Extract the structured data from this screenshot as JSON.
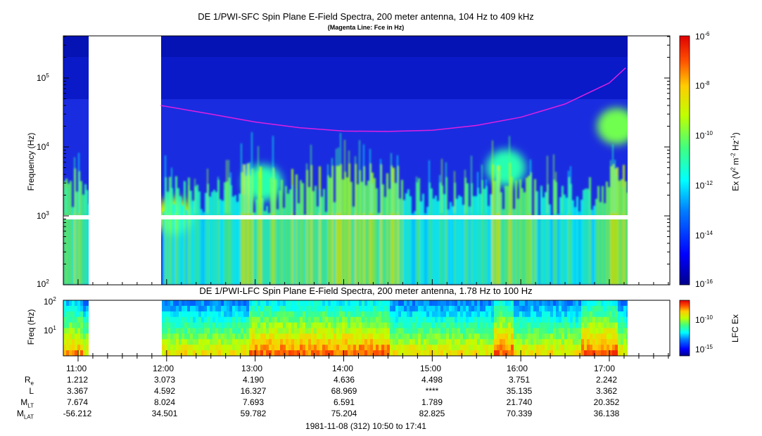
{
  "panel1": {
    "title": "DE 1/PWI-SFC  Spin Plane E-Field Spectra, 200 meter antenna, 104 Hz to 409 kHz",
    "subtitle": "(Magenta Line: Fce in Hz)",
    "ylabel": "Frequency (Hz)",
    "yticks": [
      {
        "base": "10",
        "exp": "5"
      },
      {
        "base": "10",
        "exp": "4"
      },
      {
        "base": "10",
        "exp": "3"
      },
      {
        "base": "10",
        "exp": "2"
      }
    ],
    "colorbar_label_main": "Ex (V",
    "colorbar_label_sup1": "2",
    "colorbar_label_mid": " m",
    "colorbar_label_sup2": "-2",
    "colorbar_label_mid2": " Hz",
    "colorbar_label_sup3": "-1",
    "colorbar_label_end": ")",
    "colorbar_ticks": [
      {
        "base": "10",
        "exp": "-6"
      },
      {
        "base": "10",
        "exp": "-8"
      },
      {
        "base": "10",
        "exp": "-10"
      },
      {
        "base": "10",
        "exp": "-12"
      },
      {
        "base": "10",
        "exp": "-14"
      },
      {
        "base": "10",
        "exp": "-16"
      }
    ]
  },
  "panel2": {
    "title": "DE 1/PWI-LFC  Spin Plane E-Field Spectra, 200 meter antenna, 1.78 Hz to 100 Hz",
    "ylabel": "Freq (Hz)",
    "yticks": [
      {
        "base": "10",
        "exp": "2"
      },
      {
        "base": "10",
        "exp": "1"
      }
    ],
    "colorbar_label": "LFC Ex",
    "colorbar_ticks": [
      {
        "base": "10",
        "exp": "-10"
      },
      {
        "base": "10",
        "exp": "-15"
      }
    ]
  },
  "time_axis": {
    "labels": [
      "11:00",
      "12:00",
      "13:00",
      "14:00",
      "15:00",
      "16:00",
      "17:00"
    ],
    "date_range": "1981-11-08 (312) 10:50 to 17:41"
  },
  "ephemeris": {
    "rows": [
      {
        "label": "R",
        "sub": "e",
        "values": [
          "1.212",
          "3.073",
          "4.190",
          "4.636",
          "4.498",
          "3.751",
          "2.242"
        ]
      },
      {
        "label": "L",
        "sub": "",
        "values": [
          "3.367",
          "4.592",
          "16.327",
          "68.969",
          "****",
          "35.135",
          "3.362"
        ]
      },
      {
        "label": "M",
        "sub": "LT",
        "values": [
          "7.674",
          "8.024",
          "7.693",
          "6.591",
          "1.789",
          "21.740",
          "20.352"
        ]
      },
      {
        "label": "M",
        "sub": "LAT",
        "values": [
          "-56.212",
          "34.501",
          "59.782",
          "75.204",
          "82.825",
          "70.339",
          "36.138"
        ]
      }
    ]
  },
  "chart_data": [
    {
      "type": "heatmap",
      "title": "DE 1/PWI-SFC  Spin Plane E-Field Spectra, 200 meter antenna, 104 Hz to 409 kHz",
      "subtitle": "(Magenta Line: Fce in Hz)",
      "ylabel": "Frequency (Hz)",
      "yscale": "log",
      "ylim": [
        100,
        409000
      ],
      "xlim": [
        "10:50",
        "17:41"
      ],
      "colorbar": {
        "label": "Ex (V2 m-2 Hz-1)",
        "scale": "log",
        "range": [
          1e-16,
          1e-06
        ]
      },
      "data_gaps": [
        [
          "11:04",
          "11:56"
        ]
      ],
      "series": [
        {
          "name": "Fce",
          "color": "#e020e0",
          "x": [
            "11:56",
            "12:30",
            "13:00",
            "13:30",
            "14:00",
            "14:30",
            "15:00",
            "15:30",
            "16:00",
            "16:30",
            "17:00",
            "17:11"
          ],
          "y": [
            40000,
            30000,
            23000,
            19000,
            17000,
            16800,
            17500,
            20500,
            27000,
            42000,
            85000,
            140000
          ]
        }
      ],
      "features": [
        {
          "time": "12:05",
          "freq_hz": 1000,
          "level": 1e-09
        },
        {
          "time": "13:05",
          "freq_hz": 3000,
          "level": 1e-11
        },
        {
          "time": "15:50",
          "freq_hz": 5000,
          "level": 1e-11
        },
        {
          "time": "17:05",
          "freq_hz": 20000,
          "level": 1e-10
        }
      ]
    },
    {
      "type": "heatmap",
      "title": "DE 1/PWI-LFC  Spin Plane E-Field Spectra, 200 meter antenna, 1.78 Hz to 100 Hz",
      "ylabel": "Freq (Hz)",
      "yscale": "log",
      "ylim": [
        1.78,
        100
      ],
      "xlim": [
        "10:50",
        "17:41"
      ],
      "colorbar": {
        "label": "LFC Ex",
        "scale": "log",
        "range": [
          1e-17,
          1e-07
        ]
      },
      "data_gaps": [
        [
          "11:04",
          "11:56"
        ]
      ]
    }
  ],
  "colors": {
    "magenta_line": "#e020e0",
    "background": "#ffffff"
  }
}
